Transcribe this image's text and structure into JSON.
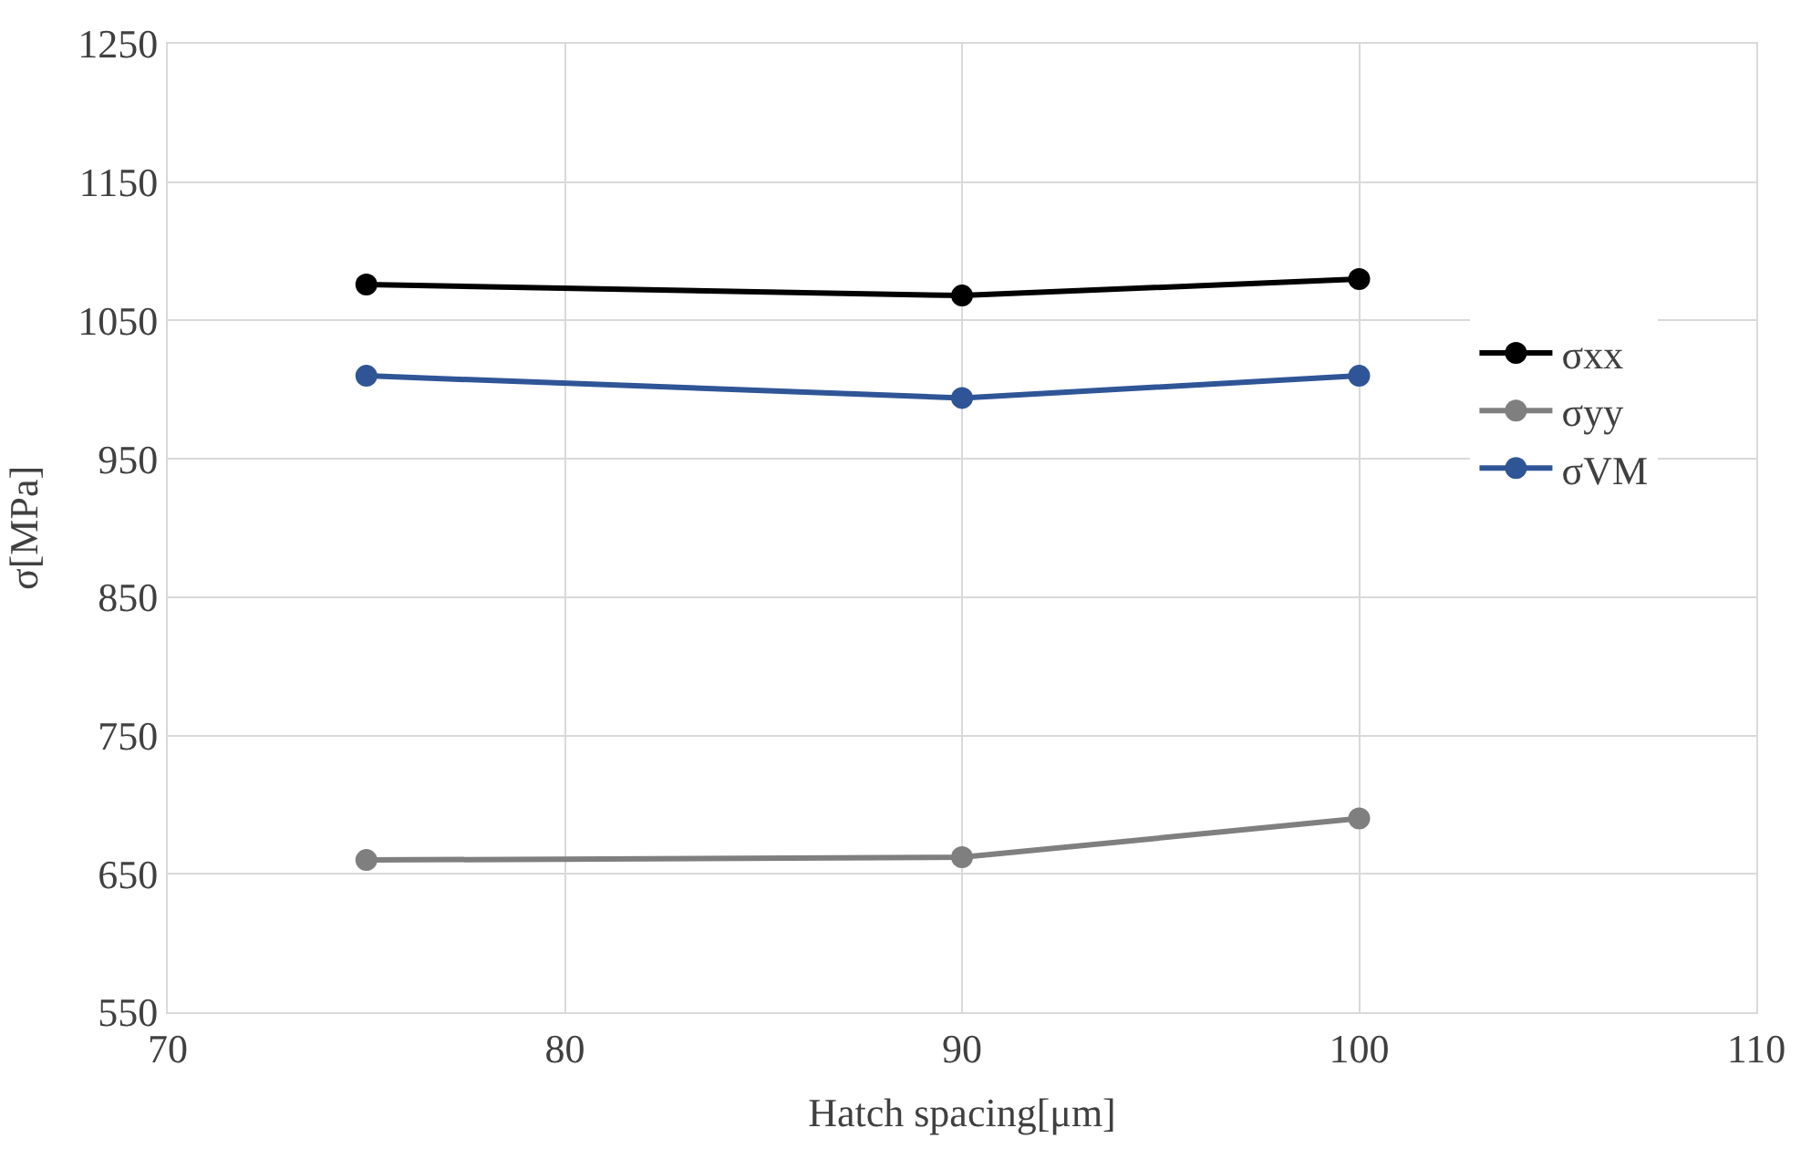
{
  "chart_data": {
    "type": "line",
    "xlabel": "Hatch spacing[μm]",
    "ylabel": "σ[MPa]",
    "x": [
      75,
      90,
      100
    ],
    "series": [
      {
        "name": "σxx",
        "color": "#000000",
        "values": [
          1076,
          1068,
          1080
        ]
      },
      {
        "name": "σyy",
        "color": "#7f7f7f",
        "values": [
          660,
          662,
          690
        ]
      },
      {
        "name": "σVM",
        "color": "#2f5597",
        "values": [
          1010,
          994,
          1010
        ]
      }
    ],
    "xlim": [
      70,
      110
    ],
    "xticks": [
      70,
      80,
      90,
      100,
      110
    ],
    "ylim": [
      550,
      1250
    ],
    "yticks": [
      550,
      650,
      750,
      850,
      950,
      1050,
      1150,
      1250
    ],
    "grid": true,
    "legend": "right",
    "marker": "circle",
    "line_style": "solid"
  }
}
